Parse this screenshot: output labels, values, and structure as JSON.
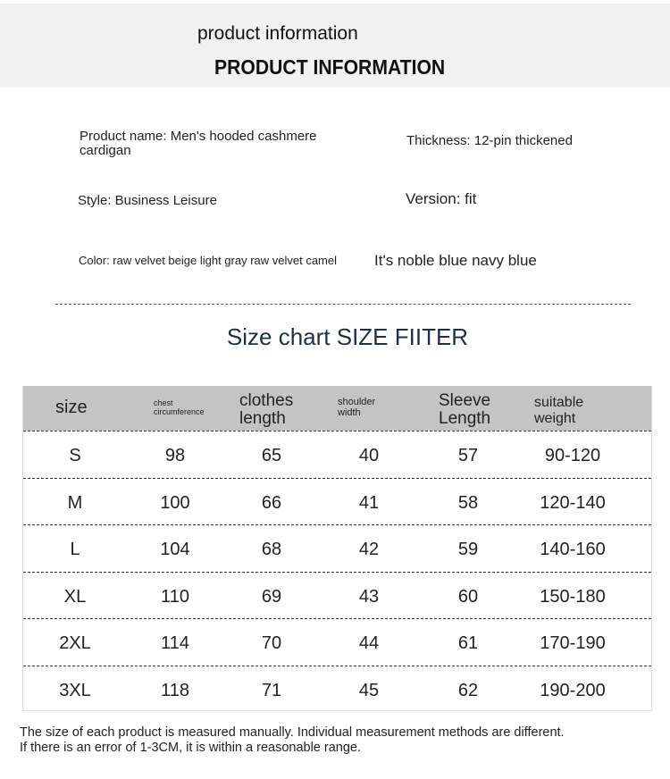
{
  "header": {
    "title_lower": "product information",
    "title_upper": "PRODUCT INFORMATION"
  },
  "info": {
    "product_name": "Product name: Men's hooded cashmere cardigan",
    "thickness": "Thickness: 12-pin thickened",
    "style": "Style: Business Leisure",
    "version": "Version: fit",
    "color_small": "Color: raw velvet beige light gray raw velvet camel",
    "color_large": "It's noble blue navy blue"
  },
  "size_chart": {
    "title": "Size chart SIZE FIITER",
    "headers": [
      "size",
      "chest circumference",
      "clothes length",
      "shoulder width",
      "Sleeve Length",
      "suitable weight"
    ],
    "rows": [
      [
        "S",
        "98",
        "65",
        "40",
        "57",
        "90-120"
      ],
      [
        "M",
        "100",
        "66",
        "41",
        "58",
        "120-140"
      ],
      [
        "L",
        "104",
        "68",
        "42",
        "59",
        "140-160"
      ],
      [
        "XL",
        "110",
        "69",
        "43",
        "60",
        "150-180"
      ],
      [
        "2XL",
        "114",
        "70",
        "44",
        "61",
        "170-190"
      ],
      [
        "3XL",
        "118",
        "71",
        "45",
        "62",
        "190-200"
      ]
    ]
  },
  "note": {
    "line1": "The size of each product is measured manually. Individual measurement methods are different.",
    "line2": "If there is an error of 1-3CM, it is within a reasonable range."
  },
  "colors": {
    "header_bg": "#c4c4c4",
    "title_color": "#1d2f4a"
  }
}
